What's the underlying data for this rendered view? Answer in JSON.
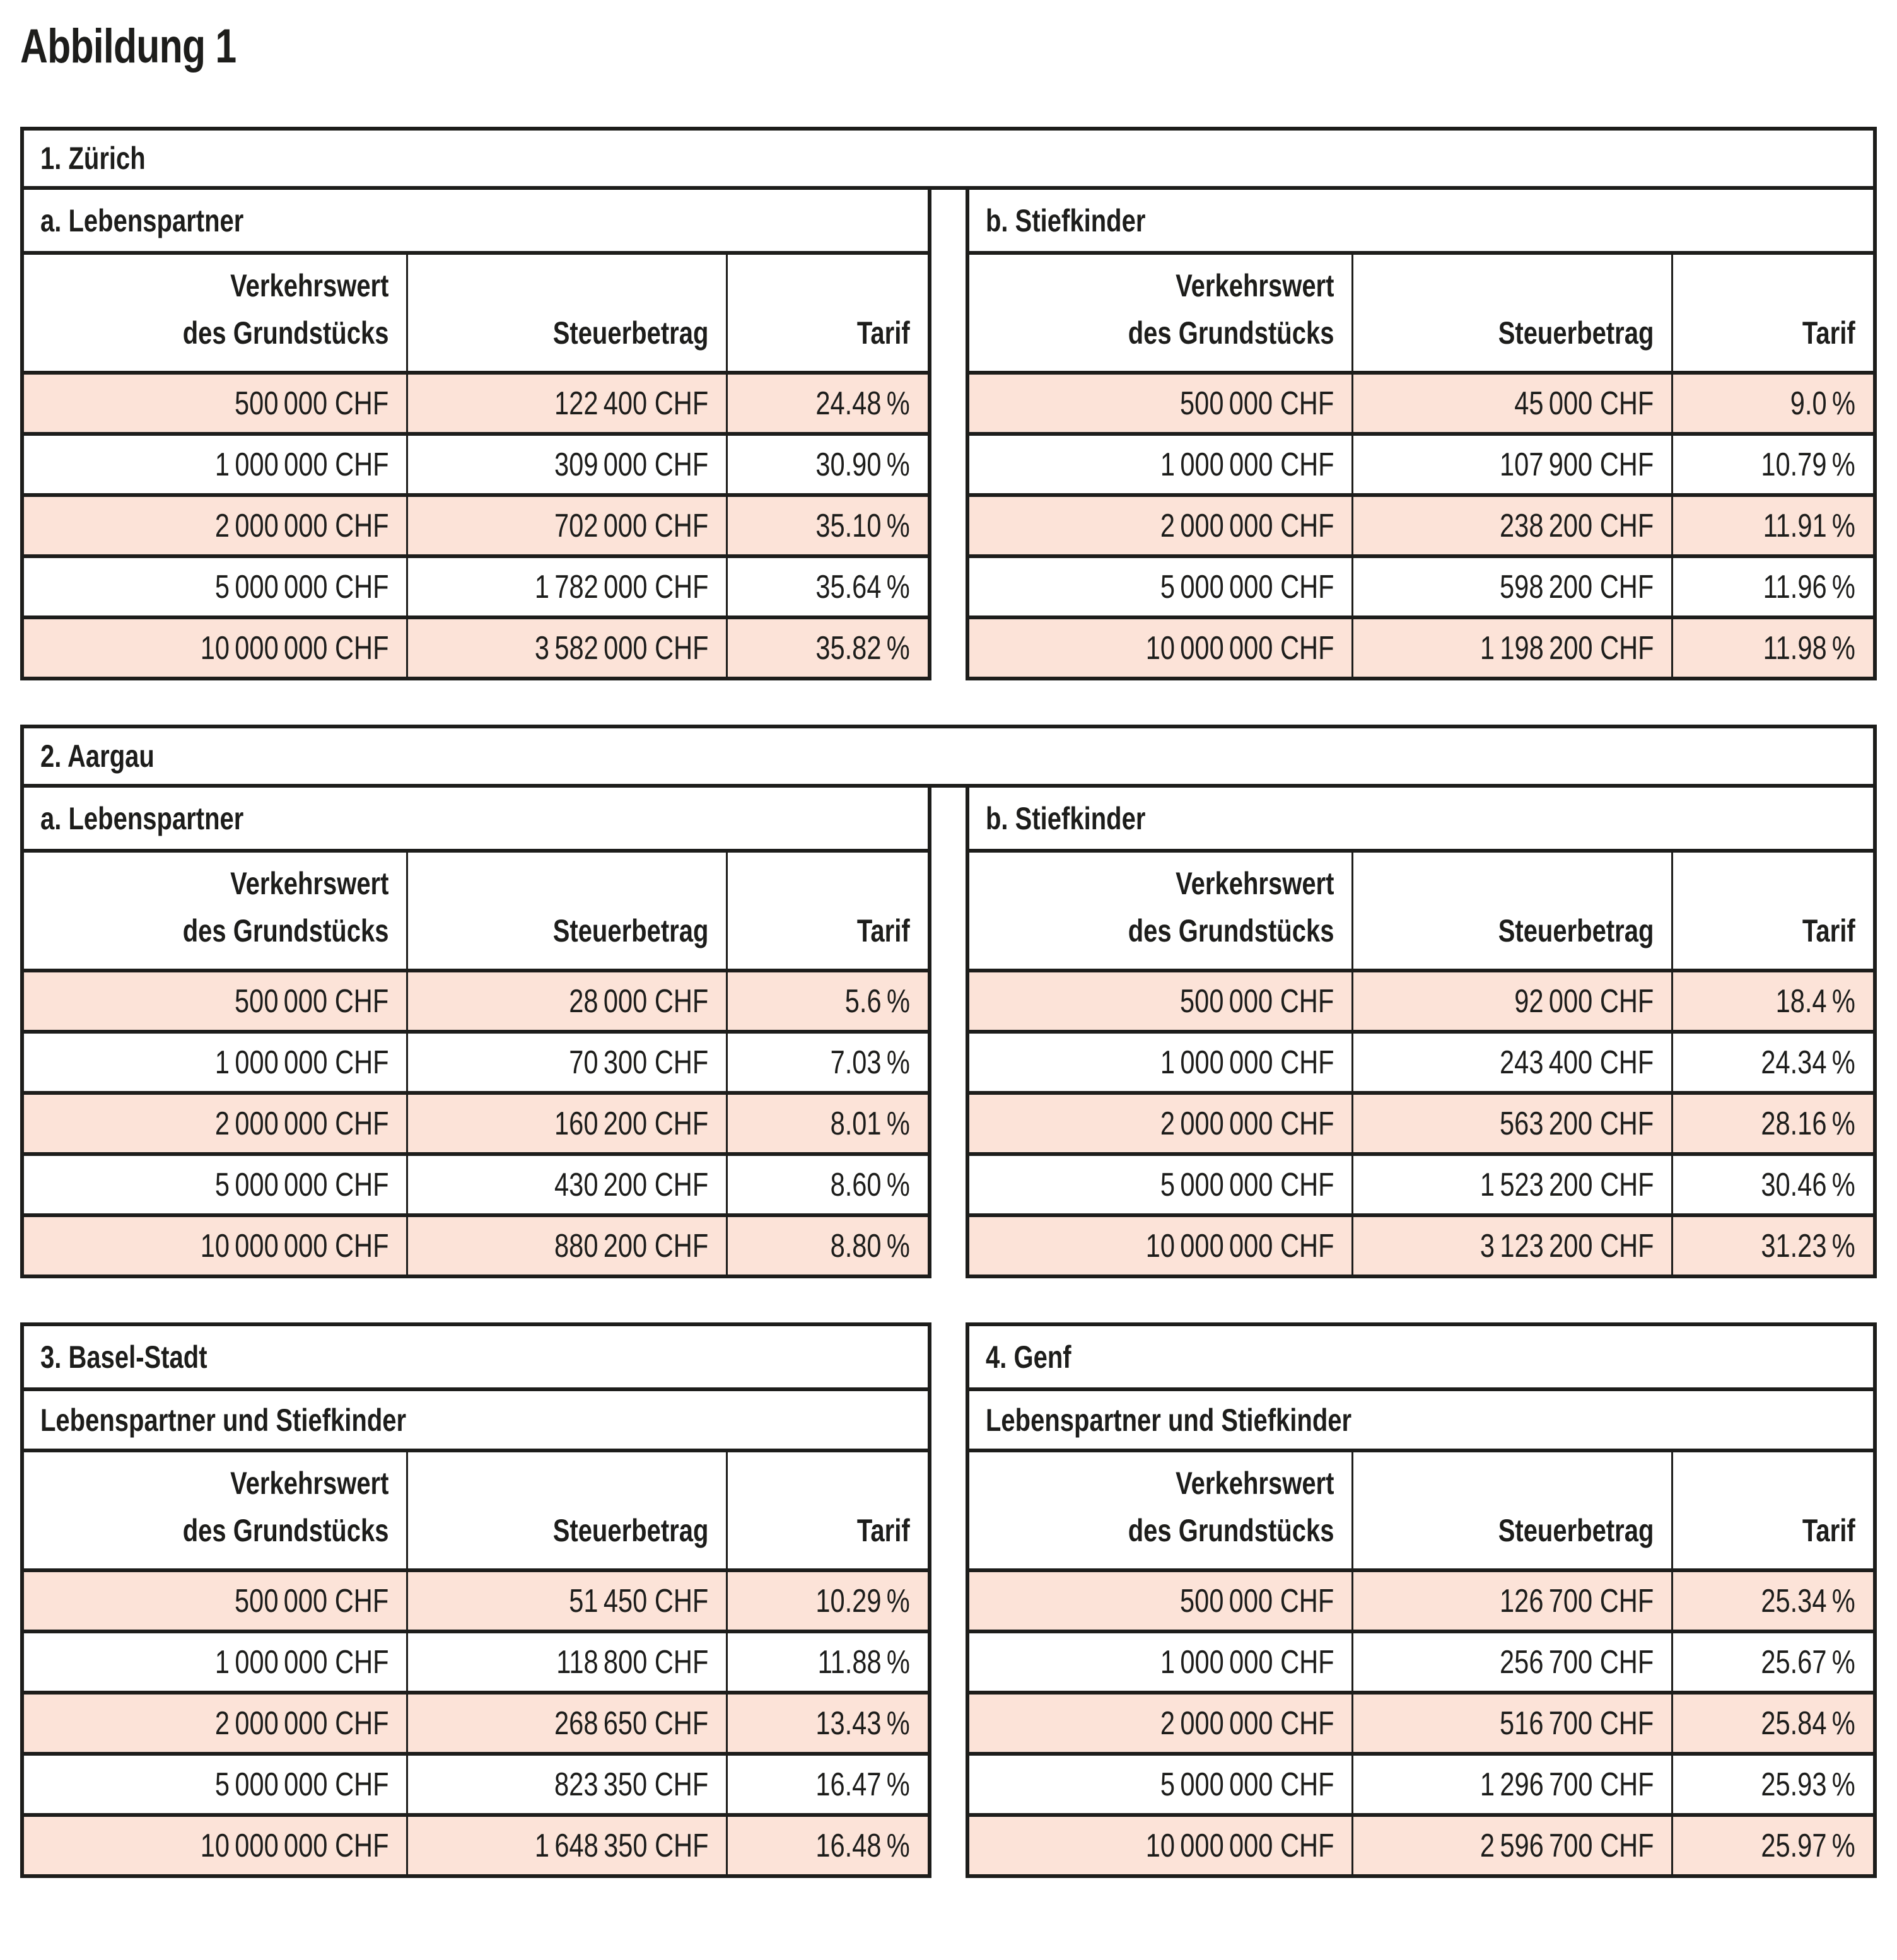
{
  "title": "Abbildung 1",
  "colors": {
    "highlight": "#fce3d8",
    "border": "#1d1d1b",
    "text": "#1d1d1b",
    "background": "#ffffff"
  },
  "columns": {
    "verkehrswert_line1": "Verkehrswert",
    "verkehrswert_line2": "des Grundstücks",
    "steuerbetrag": "Steuerbetrag",
    "tarif": "Tarif"
  },
  "sections": [
    {
      "title": "1. Zürich",
      "tables": [
        {
          "subtitle": "a. Lebenspartner",
          "rows": [
            [
              "500 000 CHF",
              "122 400 CHF",
              "24.48 %"
            ],
            [
              "1 000 000 CHF",
              "309 000 CHF",
              "30.90 %"
            ],
            [
              "2 000 000 CHF",
              "702 000 CHF",
              "35.10 %"
            ],
            [
              "5 000 000 CHF",
              "1 782 000 CHF",
              "35.64 %"
            ],
            [
              "10 000 000 CHF",
              "3 582 000 CHF",
              "35.82 %"
            ]
          ]
        },
        {
          "subtitle": "b. Stiefkinder",
          "rows": [
            [
              "500 000 CHF",
              "45 000 CHF",
              "9.0 %"
            ],
            [
              "1 000 000 CHF",
              "107 900 CHF",
              "10.79 %"
            ],
            [
              "2 000 000 CHF",
              "238 200 CHF",
              "11.91 %"
            ],
            [
              "5 000 000 CHF",
              "598 200 CHF",
              "11.96 %"
            ],
            [
              "10 000 000 CHF",
              "1 198 200 CHF",
              "11.98 %"
            ]
          ]
        }
      ]
    },
    {
      "title": "2. Aargau",
      "tables": [
        {
          "subtitle": "a. Lebenspartner",
          "rows": [
            [
              "500 000 CHF",
              "28 000 CHF",
              "5.6 %"
            ],
            [
              "1 000 000 CHF",
              "70 300 CHF",
              "7.03 %"
            ],
            [
              "2 000 000 CHF",
              "160 200 CHF",
              "8.01 %"
            ],
            [
              "5 000 000 CHF",
              "430 200 CHF",
              "8.60 %"
            ],
            [
              "10 000 000 CHF",
              "880 200 CHF",
              "8.80 %"
            ]
          ]
        },
        {
          "subtitle": "b. Stiefkinder",
          "rows": [
            [
              "500 000 CHF",
              "92 000 CHF",
              "18.4 %"
            ],
            [
              "1 000 000 CHF",
              "243 400 CHF",
              "24.34 %"
            ],
            [
              "2 000 000 CHF",
              "563 200 CHF",
              "28.16 %"
            ],
            [
              "5 000 000 CHF",
              "1 523 200 CHF",
              "30.46 %"
            ],
            [
              "10 000 000 CHF",
              "3 123 200 CHF",
              "31.23 %"
            ]
          ]
        }
      ]
    },
    {
      "title": "",
      "tables": [
        {
          "title": "3. Basel-Stadt",
          "subtitle": "Lebenspartner und Stiefkinder",
          "rows": [
            [
              "500 000 CHF",
              "51 450 CHF",
              "10.29 %"
            ],
            [
              "1 000 000 CHF",
              "118 800 CHF",
              "11.88 %"
            ],
            [
              "2 000 000 CHF",
              "268 650 CHF",
              "13.43 %"
            ],
            [
              "5 000 000 CHF",
              "823 350 CHF",
              "16.47 %"
            ],
            [
              "10 000 000 CHF",
              "1 648 350 CHF",
              "16.48 %"
            ]
          ]
        },
        {
          "title": "4. Genf",
          "subtitle": "Lebenspartner und Stiefkinder",
          "rows": [
            [
              "500 000 CHF",
              "126 700 CHF",
              "25.34 %"
            ],
            [
              "1 000 000 CHF",
              "256 700 CHF",
              "25.67 %"
            ],
            [
              "2 000 000 CHF",
              "516 700 CHF",
              "25.84 %"
            ],
            [
              "5 000 000 CHF",
              "1 296 700 CHF",
              "25.93 %"
            ],
            [
              "10 000 000 CHF",
              "2 596 700 CHF",
              "25.97 %"
            ]
          ]
        }
      ]
    }
  ]
}
